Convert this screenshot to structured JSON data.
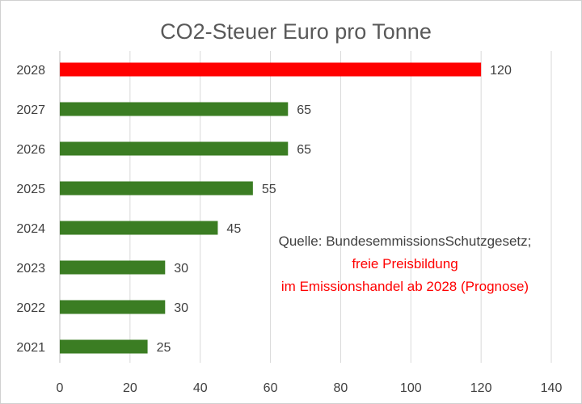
{
  "chart_data": {
    "type": "bar",
    "orientation": "horizontal",
    "title": "CO2-Steuer Euro  pro Tonne",
    "xlabel": "",
    "ylabel": "",
    "categories": [
      "2028",
      "2027",
      "2026",
      "2025",
      "2024",
      "2023",
      "2022",
      "2021"
    ],
    "values": [
      120,
      65,
      65,
      55,
      45,
      30,
      30,
      25
    ],
    "bar_colors": [
      "#ff0000",
      "#3b7d23",
      "#3b7d23",
      "#3b7d23",
      "#3b7d23",
      "#3b7d23",
      "#3b7d23",
      "#3b7d23"
    ],
    "xlim": [
      0,
      140
    ],
    "xticks": [
      0,
      20,
      40,
      60,
      80,
      100,
      120,
      140
    ],
    "grid": "vertical",
    "legend": "none",
    "annotations": [
      {
        "text": "Quelle: BundesemmissionsSchutzgesetz;",
        "color": "#404040"
      },
      {
        "text": "freie Preisbildung",
        "color": "#ff0000"
      },
      {
        "text": "im Emissionshandel ab 2028 (Prognose)",
        "color": "#ff0000"
      }
    ]
  }
}
